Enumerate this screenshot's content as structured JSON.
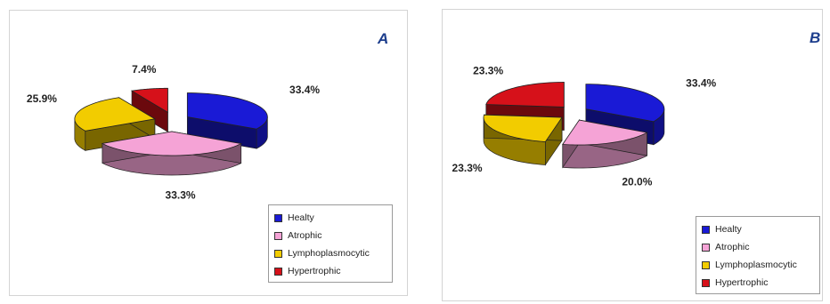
{
  "chart_data": [
    {
      "type": "pie",
      "panel": "A",
      "legend_position": "bottom-right",
      "slices": [
        {
          "label": "Healty",
          "value": 33.4,
          "value_label": "33.4%",
          "color": "#1a1ad6"
        },
        {
          "label": "Atrophic",
          "value": 33.3,
          "value_label": "33.3%",
          "color": "#f5a3d6"
        },
        {
          "label": "Lymphoplasmocytic",
          "value": 25.9,
          "value_label": "25.9%",
          "color": "#f2cc00"
        },
        {
          "label": "Hypertrophic",
          "value": 7.4,
          "value_label": "7.4%",
          "color": "#d6111a"
        }
      ]
    },
    {
      "type": "pie",
      "panel": "B",
      "legend_position": "bottom-right",
      "slices": [
        {
          "label": "Healty",
          "value": 33.4,
          "value_label": "33.4%",
          "color": "#1a1ad6"
        },
        {
          "label": "Atrophic",
          "value": 20.0,
          "value_label": "20.0%",
          "color": "#f5a3d6"
        },
        {
          "label": "Lymphoplasmocytic",
          "value": 23.3,
          "value_label": "23.3%",
          "color": "#f2cc00"
        },
        {
          "label": "Hypertrophic",
          "value": 23.3,
          "value_label": "23.3%",
          "color": "#d6111a"
        }
      ]
    }
  ]
}
